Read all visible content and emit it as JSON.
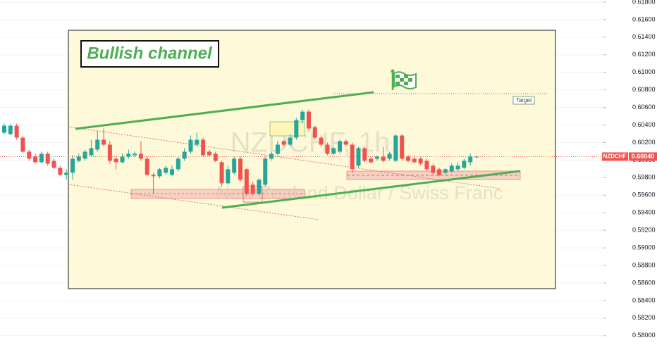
{
  "chart_data": {
    "type": "candlestick",
    "annotation": "Bullish channel",
    "target_label": "Target",
    "watermark": {
      "symbol": "NZDCHF, 1h",
      "description": "New Zealand Dollar / Swiss Franc"
    },
    "last_price": {
      "name": "NZDCHF",
      "value": 0.6004,
      "label": "0.60040"
    },
    "up_color": "#26a69a",
    "down_color": "#ef5350",
    "grid": true,
    "ylim": [
      0.57814,
      0.61824
    ],
    "yticks": [
      {
        "value": 0.618,
        "label": "0.61800"
      },
      {
        "value": 0.616,
        "label": "0.61600"
      },
      {
        "value": 0.614,
        "label": "0.61400"
      },
      {
        "value": 0.612,
        "label": "0.61200"
      },
      {
        "value": 0.61,
        "label": "0.61000"
      },
      {
        "value": 0.608,
        "label": "0.60800"
      },
      {
        "value": 0.606,
        "label": "0.60600"
      },
      {
        "value": 0.604,
        "label": "0.60400"
      },
      {
        "value": 0.602,
        "label": "0.60200"
      },
      {
        "value": 0.6,
        "label": "0.60000"
      },
      {
        "value": 0.598,
        "label": "0.59800"
      },
      {
        "value": 0.596,
        "label": "0.59600"
      },
      {
        "value": 0.594,
        "label": "0.59400"
      },
      {
        "value": 0.592,
        "label": "0.59200"
      },
      {
        "value": 0.59,
        "label": "0.59000"
      },
      {
        "value": 0.588,
        "label": "0.58800"
      },
      {
        "value": 0.586,
        "label": "0.58600"
      },
      {
        "value": 0.584,
        "label": "0.58400"
      },
      {
        "value": 0.582,
        "label": "0.58200"
      },
      {
        "value": 0.58,
        "label": "0.58000"
      }
    ],
    "open": [
      0.60312,
      0.60296,
      0.60392,
      0.60256,
      0.60096,
      0.6004,
      0.59976,
      0.60072,
      0.59992,
      0.59912,
      0.59832,
      0.59856,
      0.59992,
      0.60016,
      0.60056,
      0.6012,
      0.60232,
      0.60176,
      0.60016,
      0.59976,
      0.6004,
      0.60056,
      0.60072,
      0.60016,
      0.59832,
      0.59816,
      0.59856,
      0.59832,
      0.59896,
      0.60016,
      0.60096,
      0.60176,
      0.60232,
      0.60096,
      0.60072,
      0.59976,
      0.59736,
      0.59856,
      0.60016,
      0.59896,
      0.5972,
      0.59616,
      0.5972,
      0.60016,
      0.60072,
      0.60216,
      0.60176,
      0.60256,
      0.60456,
      0.60552,
      0.60376,
      0.60256,
      0.60176,
      0.60072,
      0.60096,
      0.60216,
      0.60176,
      0.59936,
      0.60136,
      0.60016,
      0.60016,
      0.6004,
      0.60016,
      0.59992,
      0.6028,
      0.6004,
      0.60016,
      0.60016,
      0.59992,
      0.59936,
      0.59896,
      0.59856,
      0.59872,
      0.59896,
      0.59912,
      0.59976,
      0.60032
    ],
    "high": [
      0.60416,
      0.60416,
      0.60416,
      0.6028,
      0.6012,
      0.60072,
      0.60096,
      0.60096,
      0.60016,
      0.59936,
      0.59896,
      0.60056,
      0.60072,
      0.6012,
      0.60232,
      0.60336,
      0.6036,
      0.60216,
      0.6004,
      0.60072,
      0.6012,
      0.60096,
      0.60216,
      0.6004,
      0.59856,
      0.59912,
      0.59936,
      0.59936,
      0.6004,
      0.60136,
      0.6028,
      0.60312,
      0.60256,
      0.6012,
      0.60096,
      0.59992,
      0.59936,
      0.6004,
      0.6004,
      0.59912,
      0.59752,
      0.59792,
      0.6004,
      0.60096,
      0.60216,
      0.60232,
      0.60296,
      0.6048,
      0.60576,
      0.60576,
      0.60392,
      0.6028,
      0.602,
      0.60152,
      0.60232,
      0.60232,
      0.602,
      0.60152,
      0.60152,
      0.6004,
      0.60056,
      0.60152,
      0.60096,
      0.60296,
      0.60296,
      0.60056,
      0.6004,
      0.6004,
      0.60016,
      0.5996,
      0.59912,
      0.59912,
      0.5996,
      0.59976,
      0.60016,
      0.60072,
      0.60048
    ],
    "low": [
      0.60296,
      0.6028,
      0.60232,
      0.60072,
      0.59992,
      0.5996,
      0.5996,
      0.59936,
      0.59896,
      0.59816,
      0.59776,
      0.59776,
      0.59976,
      0.59992,
      0.6004,
      0.60096,
      0.60152,
      0.5996,
      0.59896,
      0.5996,
      0.60016,
      0.6004,
      0.59992,
      0.59816,
      0.59616,
      0.59792,
      0.59832,
      0.59816,
      0.59872,
      0.59992,
      0.60072,
      0.60152,
      0.6004,
      0.6004,
      0.59976,
      0.59696,
      0.5972,
      0.59832,
      0.59752,
      0.59592,
      0.59592,
      0.59592,
      0.59696,
      0.59992,
      0.60056,
      0.60152,
      0.60152,
      0.60232,
      0.60416,
      0.60336,
      0.60232,
      0.60152,
      0.60056,
      0.60056,
      0.60072,
      0.60152,
      0.59856,
      0.59912,
      0.59976,
      0.5996,
      0.59992,
      0.59976,
      0.59992,
      0.59976,
      0.59992,
      0.59976,
      0.5996,
      0.59936,
      0.59872,
      0.59832,
      0.59816,
      0.59832,
      0.59856,
      0.59872,
      0.59896,
      0.59936,
      0.60024
    ],
    "close": [
      0.60392,
      0.60392,
      0.60256,
      0.60096,
      0.60016,
      0.59976,
      0.60072,
      0.5996,
      0.59912,
      0.59832,
      0.59856,
      0.60016,
      0.6004,
      0.60096,
      0.60136,
      0.60232,
      0.60176,
      0.59992,
      0.59976,
      0.6004,
      0.60072,
      0.60072,
      0.60016,
      0.59832,
      0.59816,
      0.59896,
      0.59912,
      0.59896,
      0.60016,
      0.60096,
      0.60232,
      0.60232,
      0.60056,
      0.60056,
      0.59992,
      0.59736,
      0.59896,
      0.60016,
      0.59776,
      0.59616,
      0.59616,
      0.59776,
      0.60016,
      0.60072,
      0.60176,
      0.60176,
      0.60256,
      0.60456,
      0.60552,
      0.6036,
      0.60256,
      0.60176,
      0.60072,
      0.60136,
      0.60216,
      0.60176,
      0.59896,
      0.60136,
      0.59992,
      0.59976,
      0.6004,
      0.59992,
      0.60072,
      0.6028,
      0.60016,
      0.59992,
      0.59976,
      0.5996,
      0.59896,
      0.59856,
      0.59832,
      0.59896,
      0.59936,
      0.59936,
      0.59992,
      0.6004,
      0.6004
    ]
  }
}
